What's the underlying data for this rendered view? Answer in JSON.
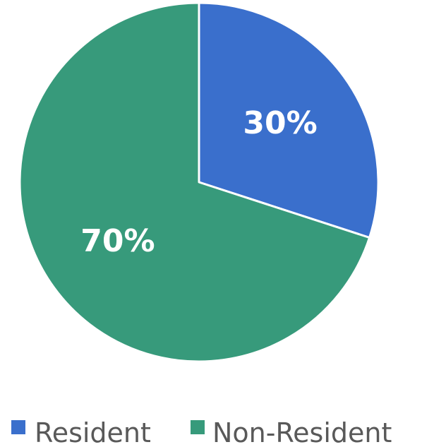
{
  "chart_data": {
    "type": "pie",
    "title": "",
    "start_angle_deg": 0,
    "direction": "clockwise",
    "legend_position": "bottom",
    "slices": [
      {
        "name": "Resident",
        "value": 30,
        "label": "30%",
        "color": "#3A6FCC"
      },
      {
        "name": "Non-Resident",
        "value": 70,
        "label": "70%",
        "color": "#379A7B"
      }
    ]
  }
}
